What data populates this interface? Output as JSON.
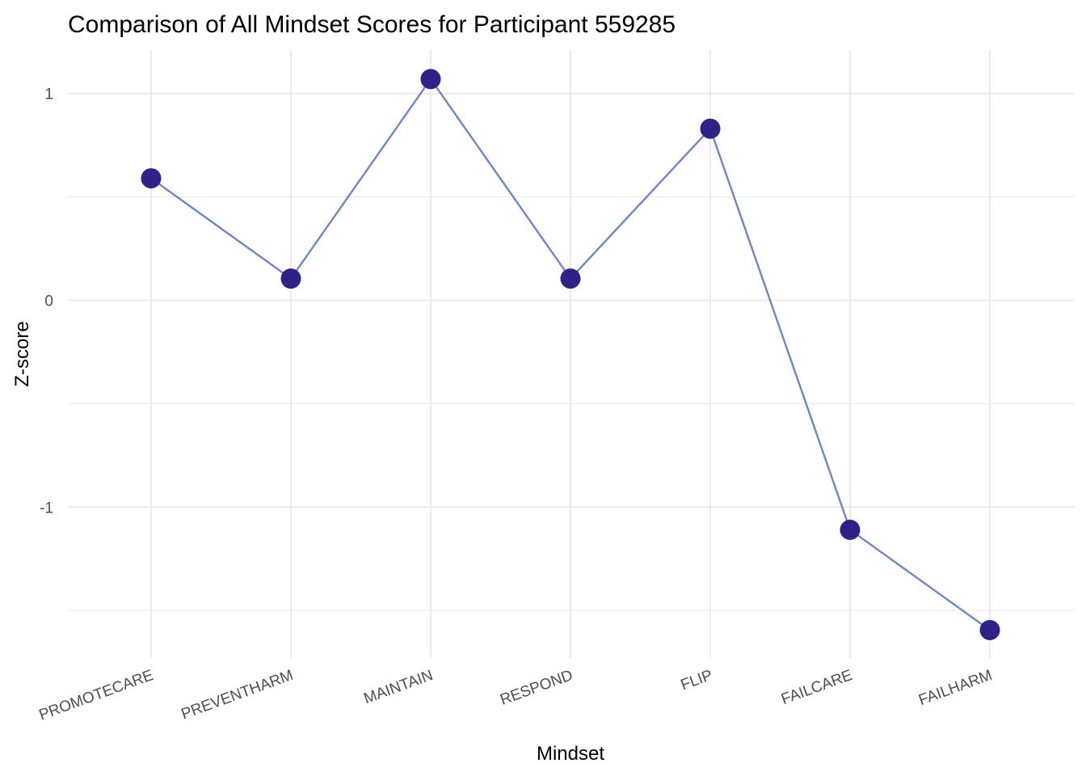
{
  "chart_data": {
    "type": "line",
    "title": "Comparison of All Mindset Scores for Participant 559285",
    "xlabel": "Mindset",
    "ylabel": "Z-score",
    "categories": [
      "PROMOTECARE",
      "PREVENTHARM",
      "MAINTAIN",
      "RESPOND",
      "FLIP",
      "FAILCARE",
      "FAILHARM"
    ],
    "series": [
      {
        "values": [
          0.59,
          0.105,
          1.07,
          0.105,
          0.83,
          -1.11,
          -1.595
        ],
        "line_color": "#6f86c6",
        "point_color": "#2e2288"
      }
    ],
    "ylim": [
      -1.73,
      1.21
    ],
    "yticks": [
      -1,
      0,
      1
    ],
    "ytick_labels": [
      "-1",
      "0",
      "1"
    ],
    "grid": true,
    "legend": "none"
  }
}
